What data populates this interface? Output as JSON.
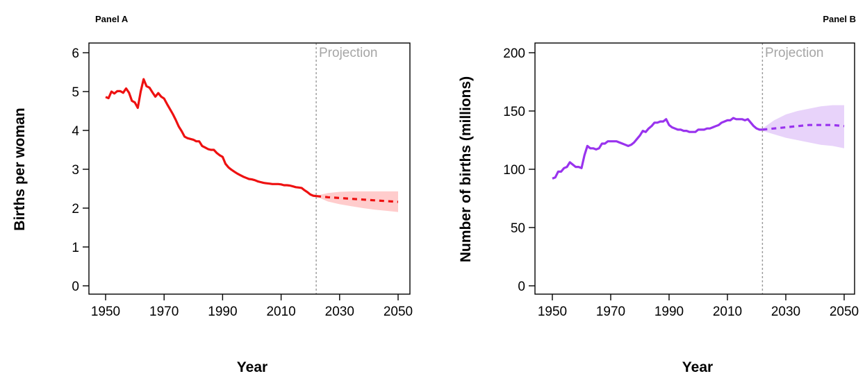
{
  "chart_data": [
    {
      "type": "line",
      "panel_label": "Panel A",
      "xlabel": "Year",
      "ylabel": "Births per woman",
      "annotation": "Projection",
      "projection_start": 2022,
      "xlim": [
        1950,
        2050
      ],
      "ylim": [
        0,
        6
      ],
      "x_ticks": [
        1950,
        1970,
        1990,
        2010,
        2030,
        2050
      ],
      "y_ticks": [
        0,
        1,
        2,
        3,
        4,
        5,
        6
      ],
      "color": "#ee1111",
      "band_color": "#ffcccc",
      "series": [
        {
          "style": "solid",
          "x": [
            1950,
            1951,
            1952,
            1953,
            1954,
            1955,
            1956,
            1957,
            1958,
            1959,
            1960,
            1961,
            1962,
            1963,
            1964,
            1965,
            1966,
            1967,
            1968,
            1969,
            1970,
            1971,
            1972,
            1973,
            1974,
            1975,
            1976,
            1977,
            1978,
            1979,
            1980,
            1981,
            1982,
            1983,
            1984,
            1985,
            1986,
            1987,
            1988,
            1989,
            1990,
            1991,
            1992,
            1993,
            1994,
            1995,
            1996,
            1997,
            1998,
            1999,
            2000,
            2001,
            2002,
            2003,
            2004,
            2005,
            2006,
            2007,
            2008,
            2009,
            2010,
            2011,
            2012,
            2013,
            2014,
            2015,
            2016,
            2017,
            2018,
            2019,
            2020,
            2021,
            2022
          ],
          "y": [
            4.86,
            4.83,
            5.0,
            4.95,
            5.01,
            5.01,
            4.97,
            5.08,
            4.97,
            4.76,
            4.72,
            4.58,
            5.0,
            5.32,
            5.14,
            5.1,
            4.98,
            4.87,
            4.96,
            4.87,
            4.82,
            4.68,
            4.55,
            4.42,
            4.27,
            4.1,
            3.98,
            3.84,
            3.8,
            3.78,
            3.76,
            3.72,
            3.72,
            3.6,
            3.56,
            3.52,
            3.5,
            3.5,
            3.42,
            3.36,
            3.32,
            3.14,
            3.05,
            2.99,
            2.94,
            2.89,
            2.85,
            2.81,
            2.78,
            2.75,
            2.74,
            2.72,
            2.69,
            2.67,
            2.65,
            2.64,
            2.63,
            2.62,
            2.62,
            2.62,
            2.61,
            2.59,
            2.59,
            2.58,
            2.56,
            2.54,
            2.53,
            2.52,
            2.46,
            2.41,
            2.35,
            2.32,
            2.31
          ]
        },
        {
          "style": "dashed",
          "x": [
            2022,
            2026,
            2030,
            2034,
            2038,
            2042,
            2046,
            2050
          ],
          "y": [
            2.31,
            2.28,
            2.26,
            2.24,
            2.22,
            2.2,
            2.18,
            2.16
          ]
        }
      ],
      "band": {
        "x": [
          2022,
          2026,
          2030,
          2034,
          2038,
          2042,
          2046,
          2050
        ],
        "upper": [
          2.32,
          2.39,
          2.42,
          2.43,
          2.43,
          2.43,
          2.43,
          2.43
        ],
        "lower": [
          2.3,
          2.17,
          2.1,
          2.05,
          2.0,
          1.96,
          1.93,
          1.9
        ]
      }
    },
    {
      "type": "line",
      "panel_label": "Panel B",
      "xlabel": "Year",
      "ylabel": "Number of births (millions)",
      "annotation": "Projection",
      "projection_start": 2022,
      "xlim": [
        1950,
        2050
      ],
      "ylim": [
        0,
        200
      ],
      "x_ticks": [
        1950,
        1970,
        1990,
        2010,
        2030,
        2050
      ],
      "y_ticks": [
        0,
        50,
        100,
        150,
        200
      ],
      "color": "#9933ee",
      "band_color": "#e8d3fa",
      "series": [
        {
          "style": "solid",
          "x": [
            1950,
            1951,
            1952,
            1953,
            1954,
            1955,
            1956,
            1957,
            1958,
            1959,
            1960,
            1961,
            1962,
            1963,
            1964,
            1965,
            1966,
            1967,
            1968,
            1969,
            1970,
            1971,
            1972,
            1973,
            1974,
            1975,
            1976,
            1977,
            1978,
            1979,
            1980,
            1981,
            1982,
            1983,
            1984,
            1985,
            1986,
            1987,
            1988,
            1989,
            1990,
            1991,
            1992,
            1993,
            1994,
            1995,
            1996,
            1997,
            1998,
            1999,
            2000,
            2001,
            2002,
            2003,
            2004,
            2005,
            2006,
            2007,
            2008,
            2009,
            2010,
            2011,
            2012,
            2013,
            2014,
            2015,
            2016,
            2017,
            2018,
            2019,
            2020,
            2021,
            2022
          ],
          "y": [
            92,
            93,
            98,
            98,
            101,
            102,
            106,
            104,
            102,
            102,
            101,
            112,
            120,
            118,
            118,
            117,
            118,
            122,
            122,
            124,
            124,
            124,
            124,
            123,
            122,
            121,
            120,
            121,
            123,
            126,
            129,
            133,
            132,
            135,
            137,
            140,
            140,
            141,
            141,
            143,
            138,
            136,
            135,
            134,
            134,
            133,
            133,
            132,
            132,
            132,
            134,
            134,
            134,
            135,
            135,
            136,
            137,
            138,
            140,
            141,
            142,
            142,
            144,
            143,
            143,
            143,
            142,
            143,
            140,
            137,
            135,
            134,
            134
          ]
        },
        {
          "style": "dashed",
          "x": [
            2022,
            2026,
            2030,
            2034,
            2038,
            2042,
            2046,
            2050
          ],
          "y": [
            134,
            135,
            136,
            137,
            138,
            138,
            138,
            137
          ]
        }
      ],
      "band": {
        "x": [
          2022,
          2026,
          2030,
          2034,
          2038,
          2042,
          2046,
          2050
        ],
        "upper": [
          135,
          142,
          147,
          150,
          152,
          154,
          155,
          155
        ],
        "lower": [
          133,
          130,
          127,
          125,
          123,
          121,
          120,
          118
        ]
      }
    }
  ]
}
